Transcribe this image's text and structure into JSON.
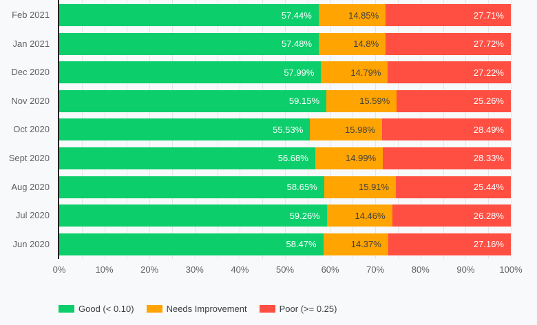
{
  "colors": {
    "good": "#0CCE6B",
    "needs_improvement": "#FFA400",
    "poor": "#FF4E42",
    "background": "#F8F9FA",
    "gridline": "#E3E6EA",
    "axis_line": "#212121",
    "row_label_text": "#616161",
    "axis_label_text": "#616161",
    "legend_text": "#3C4043",
    "value_on_dark": "#FFFFFF",
    "value_on_orange": "#404040"
  },
  "chart_data": {
    "type": "bar",
    "orientation": "horizontal",
    "stacked": true,
    "categories": [
      "Feb 2021",
      "Jan 2021",
      "Dec 2020",
      "Nov 2020",
      "Oct 2020",
      "Sept 2020",
      "Aug 2020",
      "Jul 2020",
      "Jun 2020"
    ],
    "series": [
      {
        "name": "Good (< 0.10)",
        "color_key": "good",
        "text_color_key": "value_on_dark",
        "values": [
          57.44,
          57.48,
          57.99,
          59.15,
          55.53,
          56.68,
          58.65,
          59.26,
          58.47
        ],
        "labels": [
          "57.44%",
          "57.48%",
          "57.99%",
          "59.15%",
          "55.53%",
          "56.68%",
          "58.65%",
          "59.26%",
          "58.47%"
        ]
      },
      {
        "name": "Needs Improvement",
        "color_key": "needs_improvement",
        "text_color_key": "value_on_orange",
        "values": [
          14.85,
          14.8,
          14.79,
          15.59,
          15.98,
          14.99,
          15.91,
          14.46,
          14.37
        ],
        "labels": [
          "14.85%",
          "14.8%",
          "14.79%",
          "15.59%",
          "15.98%",
          "14.99%",
          "15.91%",
          "14.46%",
          "14.37%"
        ]
      },
      {
        "name": "Poor (>= 0.25)",
        "color_key": "poor",
        "text_color_key": "value_on_dark",
        "values": [
          27.71,
          27.72,
          27.22,
          25.26,
          28.49,
          28.33,
          25.44,
          26.28,
          27.16
        ],
        "labels": [
          "27.71%",
          "27.72%",
          "27.22%",
          "25.26%",
          "28.49%",
          "28.33%",
          "25.44%",
          "26.28%",
          "27.16%"
        ]
      }
    ],
    "x_axis": {
      "min": 0,
      "max": 100,
      "tick_labels": [
        "0%",
        "10%",
        "20%",
        "30%",
        "40%",
        "50%",
        "60%",
        "70%",
        "80%",
        "90%",
        "100%"
      ],
      "minor_grid_step_percent": 5,
      "grid": true
    },
    "legend": {
      "position": "bottom",
      "entries": [
        "Good (< 0.10)",
        "Needs Improvement",
        "Poor (>= 0.25)"
      ]
    }
  }
}
